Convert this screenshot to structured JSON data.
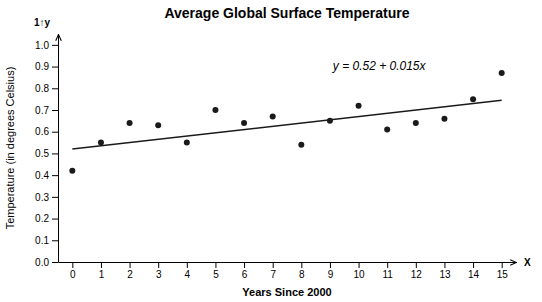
{
  "chart_data": {
    "type": "scatter",
    "title": "Average Global Surface Temperature",
    "x_label": "Years Since 2000",
    "y_label": "Temperature (in degrees Celsius)",
    "annotations": [
      "y = 0.52 + 0.015x",
      "X",
      "1↑y"
    ],
    "series": [
      {
        "type": "scatter",
        "color": "#1a1a1a",
        "x": [
          0,
          1,
          2,
          3,
          4,
          5,
          6,
          7,
          8,
          9,
          10,
          11,
          12,
          13,
          14,
          15
        ],
        "values": [
          0.42,
          0.55,
          0.64,
          0.63,
          0.55,
          0.7,
          0.64,
          0.67,
          0.54,
          0.65,
          0.72,
          0.61,
          0.64,
          0.66,
          0.75,
          0.87
        ]
      },
      {
        "type": "line",
        "color": "#1a1a1a",
        "x": [
          0,
          15
        ],
        "values": [
          0.52,
          0.745
        ]
      }
    ],
    "xlim": [
      -0.5,
      15.5
    ],
    "ylim": [
      0,
      1.05
    ],
    "xticks": [
      0,
      1,
      2,
      3,
      4,
      5,
      6,
      7,
      8,
      9,
      10,
      11,
      12,
      13,
      14,
      15
    ],
    "yticks": [
      {
        "value": 0,
        "label": "0.0"
      },
      0.1,
      0.2,
      0.3,
      0.4,
      0.5,
      0.6,
      0.7,
      0.8,
      0.9,
      {
        "value": 1.0,
        "label": "1.0"
      }
    ],
    "grid": false
  }
}
